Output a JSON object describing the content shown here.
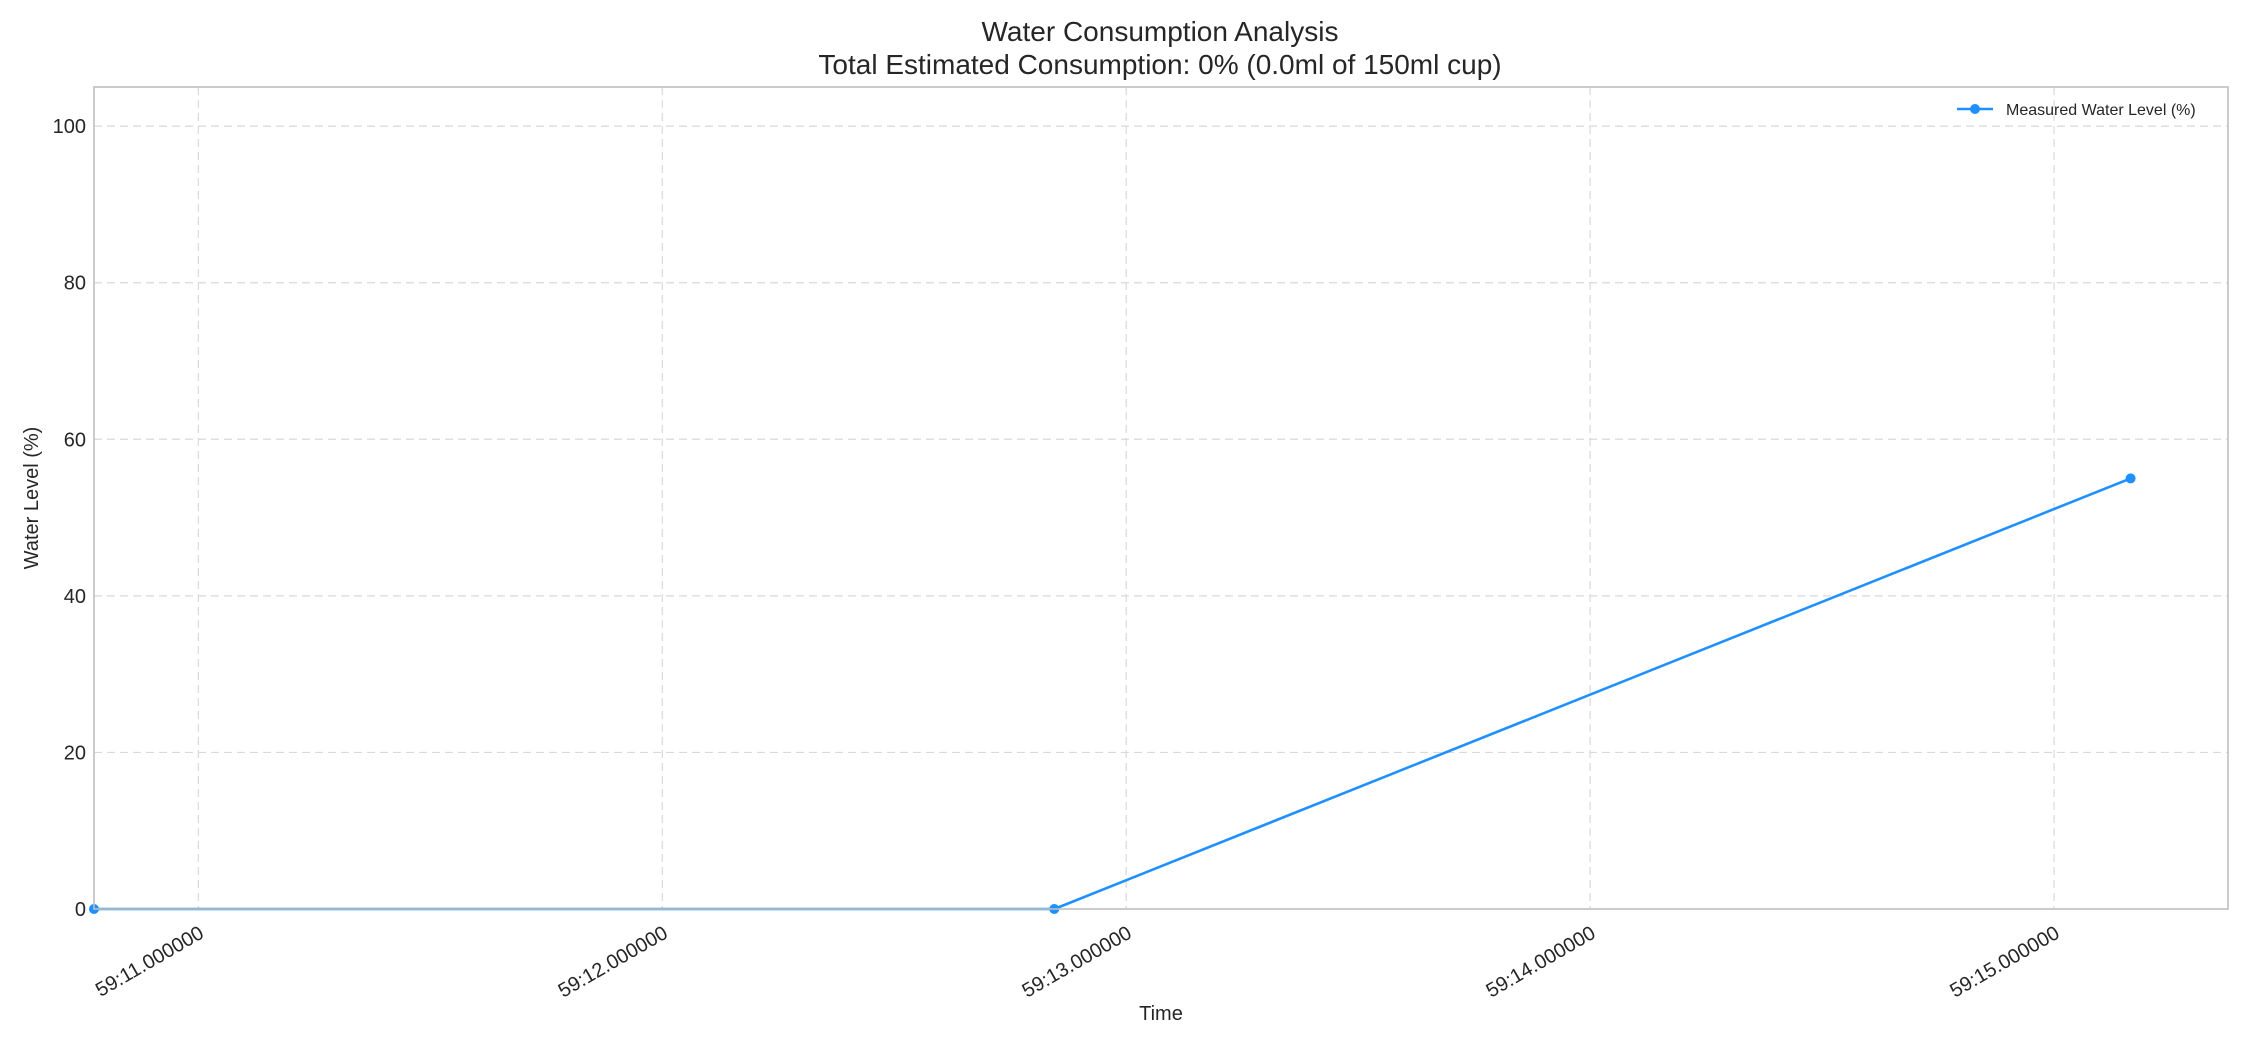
{
  "chart_data": {
    "type": "line",
    "title": "Water Consumption Analysis",
    "subtitle": "Total Estimated Consumption: 0% (0.0ml of 150ml cup)",
    "xlabel": "Time",
    "ylabel": "Water Level (%)",
    "x_unit": "seconds",
    "xlim": [
      10.775,
      15.375
    ],
    "ylim": [
      0,
      105
    ],
    "xticks": [
      11,
      12,
      13,
      14,
      15
    ],
    "xtick_labels": [
      "59:11.000000",
      "59:12.000000",
      "59:13.000000",
      "59:14.000000",
      "59:15.000000"
    ],
    "yticks": [
      0,
      20,
      40,
      60,
      80,
      100
    ],
    "ytick_labels": [
      "0",
      "20",
      "40",
      "60",
      "80",
      "100"
    ],
    "grid": true,
    "legend_position": "top-right",
    "series": [
      {
        "name": "Measured Water Level (%)",
        "color": "#1e90ff",
        "marker": "circle",
        "x": [
          10.775,
          12.845,
          15.165
        ],
        "y": [
          0,
          0,
          55
        ]
      }
    ]
  }
}
